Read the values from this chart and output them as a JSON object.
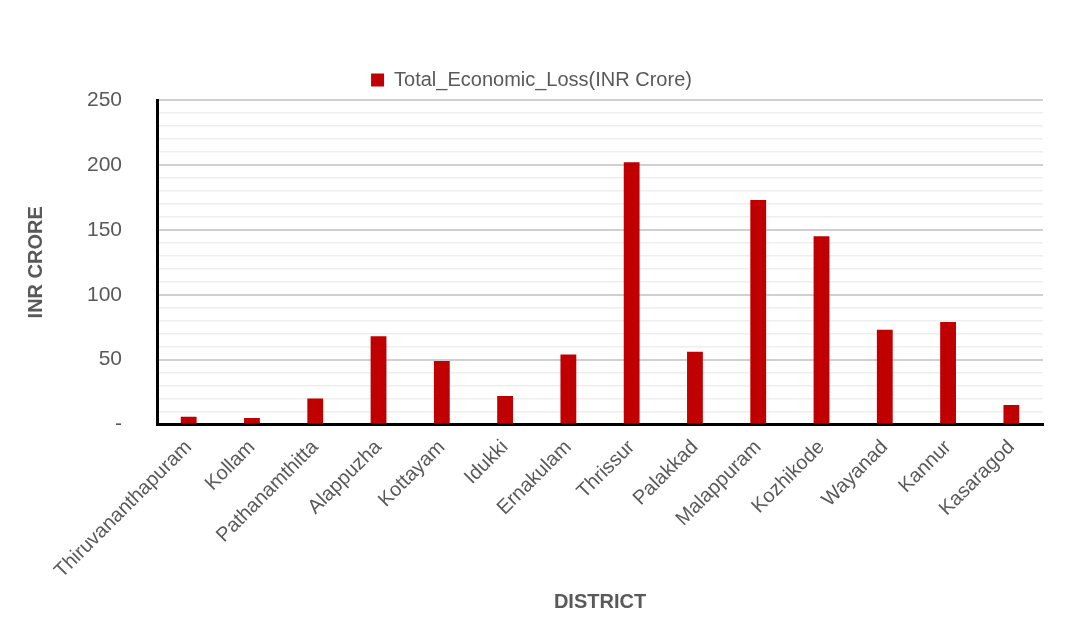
{
  "chart_data": {
    "type": "bar",
    "xlabel": "DISTRICT",
    "ylabel": "INR CRORE",
    "categories": [
      "Thiruvananthapuram",
      "Kollam",
      "Pathanamthitta",
      "Alappuzha",
      "Kottayam",
      "Idukki",
      "Ernakulam",
      "Thrissur",
      "Palakkad",
      "Malappuram",
      "Kozhikode",
      "Wayanad",
      "Kannur",
      "Kasaragod"
    ],
    "series": [
      {
        "name": "Total_Economic_Loss(INR Crore)",
        "color": "#c00000",
        "values": [
          6,
          5,
          20,
          68,
          49,
          22,
          54,
          202,
          56,
          173,
          145,
          73,
          79,
          15
        ]
      }
    ],
    "ylim": [
      0,
      250
    ],
    "yticks": [
      {
        "value": 0,
        "label": "-"
      },
      {
        "value": 10,
        "label": null
      },
      {
        "value": 20,
        "label": null
      },
      {
        "value": 30,
        "label": null
      },
      {
        "value": 40,
        "label": null
      },
      50,
      {
        "value": 60,
        "label": null
      },
      {
        "value": 70,
        "label": null
      },
      {
        "value": 80,
        "label": null
      },
      {
        "value": 90,
        "label": null
      },
      100,
      {
        "value": 110,
        "label": null
      },
      {
        "value": 120,
        "label": null
      },
      {
        "value": 130,
        "label": null
      },
      {
        "value": 140,
        "label": null
      },
      150,
      {
        "value": 160,
        "label": null
      },
      {
        "value": 170,
        "label": null
      },
      {
        "value": 180,
        "label": null
      },
      {
        "value": 190,
        "label": null
      },
      200,
      {
        "value": 210,
        "label": null
      },
      {
        "value": 220,
        "label": null
      },
      {
        "value": 230,
        "label": null
      },
      {
        "value": 240,
        "label": null
      },
      250
    ],
    "grid": "y",
    "legend": "top"
  }
}
